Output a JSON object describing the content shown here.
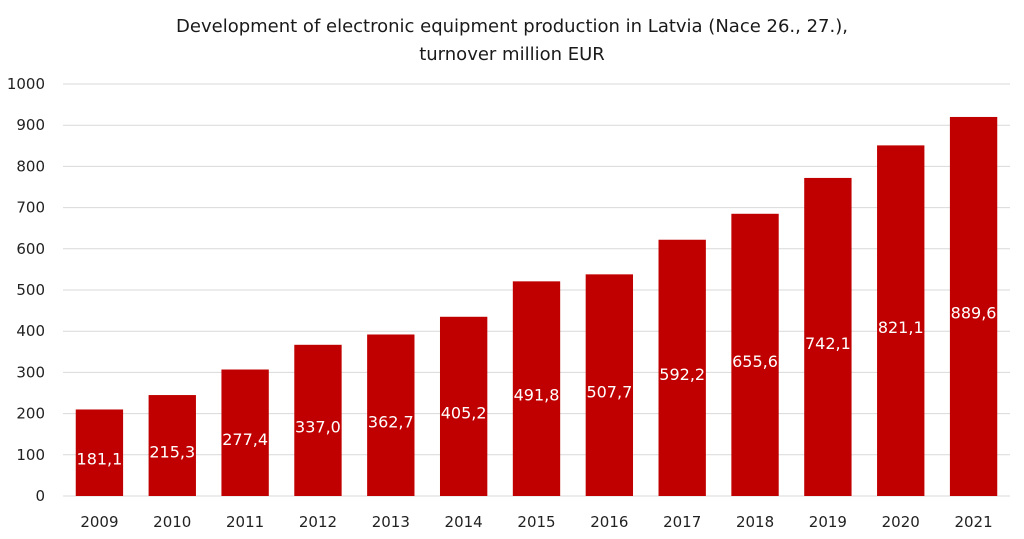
{
  "chart_data": {
    "type": "bar",
    "title": "Development of electronic equipment production in Latvia (Nace 26., 27.),",
    "subtitle": "turnover million EUR",
    "categories": [
      "2009",
      "2010",
      "2011",
      "2012",
      "2013",
      "2014",
      "2015",
      "2016",
      "2017",
      "2018",
      "2019",
      "2020",
      "2021"
    ],
    "values": [
      181.1,
      215.3,
      277.4,
      337.0,
      362.7,
      405.2,
      491.8,
      507.7,
      592.2,
      655.6,
      742.1,
      821.1,
      889.6
    ],
    "bar_totals": [
      210,
      245,
      307,
      367,
      392,
      435,
      521,
      538,
      622,
      685,
      772,
      851,
      920
    ],
    "data_labels": [
      "181,1",
      "215,3",
      "277,4",
      "337,0",
      "362,7",
      "405,2",
      "491,8",
      "507,7",
      "592,2",
      "655,6",
      "742,1",
      "821,1",
      "889,6"
    ],
    "y_ticks": [
      "0",
      "100",
      "200",
      "300",
      "400",
      "500",
      "600",
      "700",
      "800",
      "900",
      "1000"
    ],
    "ylim": [
      0,
      1000
    ],
    "grid": true,
    "bar_color": "#c00000",
    "legend": "none"
  }
}
